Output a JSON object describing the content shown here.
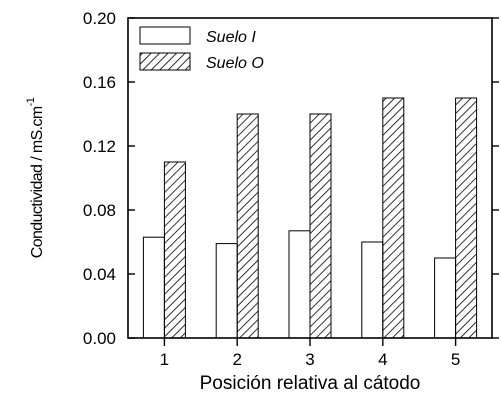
{
  "chart_data": {
    "type": "bar",
    "categories": [
      "1",
      "2",
      "3",
      "4",
      "5"
    ],
    "series": [
      {
        "name": "Suelo I",
        "pattern": "none",
        "values": [
          0.063,
          0.059,
          0.067,
          0.06,
          0.05
        ]
      },
      {
        "name": "Suelo O",
        "pattern": "hatch",
        "values": [
          0.11,
          0.14,
          0.14,
          0.15,
          0.15
        ]
      }
    ],
    "title": "",
    "xlabel": "Posición relativa al cátodo",
    "ylabel_main": "Conductividad / mS.cm",
    "ylabel_sup": "-1",
    "ylim": [
      0,
      0.2
    ],
    "yticks": [
      "0.00",
      "0.04",
      "0.08",
      "0.12",
      "0.16",
      "0.20"
    ],
    "ytick_values": [
      0,
      0.04,
      0.08,
      0.12,
      0.16,
      0.2
    ],
    "grid": false,
    "legend_position": "top-left"
  }
}
